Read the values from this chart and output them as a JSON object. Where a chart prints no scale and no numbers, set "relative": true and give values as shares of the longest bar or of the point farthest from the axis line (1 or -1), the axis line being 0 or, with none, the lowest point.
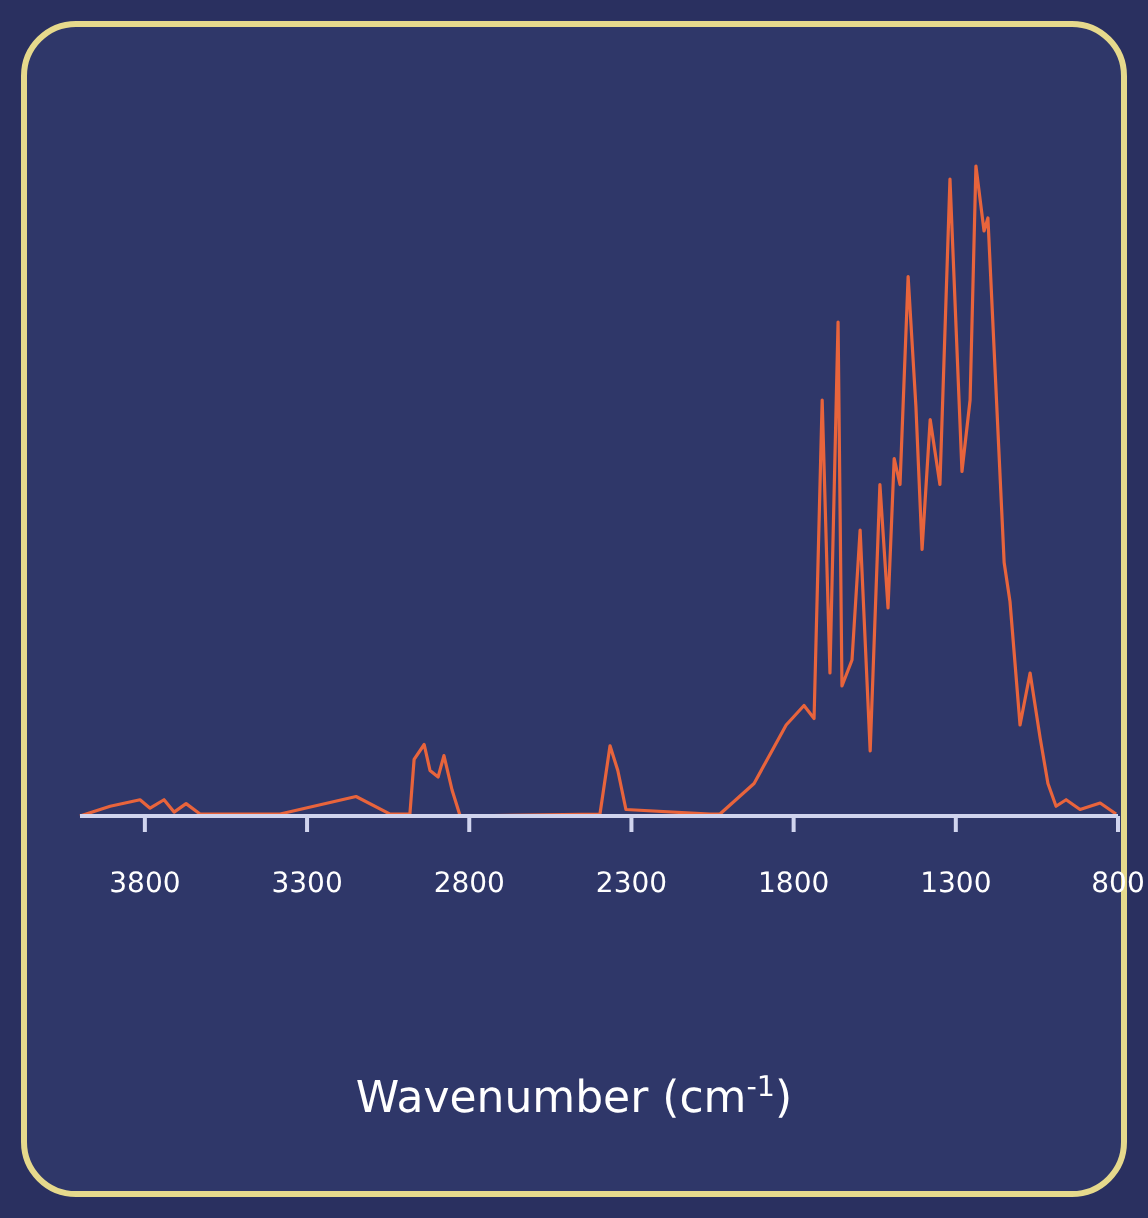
{
  "chart_data": {
    "type": "line",
    "xlabel": "Wavenumber (cm$^{-1}$)",
    "relative": true,
    "xlim": [
      4000,
      800
    ],
    "xticks": [
      3800,
      3300,
      2800,
      2300,
      1800,
      1300,
      800
    ],
    "grid": false,
    "line_style": "solid",
    "x": [
      4000,
      3907,
      3815,
      3784,
      3741,
      3710,
      3673,
      3630,
      3383,
      3149,
      3044,
      2983,
      2970,
      2939,
      2921,
      2896,
      2878,
      2853,
      2828,
      2397,
      2366,
      2342,
      2317,
      2058,
      2027,
      1922,
      1823,
      1768,
      1737,
      1712,
      1688,
      1663,
      1651,
      1620,
      1595,
      1564,
      1534,
      1509,
      1490,
      1472,
      1447,
      1423,
      1404,
      1379,
      1349,
      1318,
      1281,
      1256,
      1238,
      1213,
      1201,
      1151,
      1133,
      1102,
      1071,
      1040,
      1016,
      991,
      960,
      917,
      855,
      806
    ],
    "series": [
      {
        "color": "#e8643c",
        "values": [
          0,
          0.015,
          0.025,
          0.012,
          0.025,
          0.006,
          0.019,
          0.003,
          0.003,
          0.03,
          0.003,
          0.003,
          0.087,
          0.11,
          0.07,
          0.06,
          0.093,
          0.04,
          0,
          0.003,
          0.108,
          0.07,
          0.01,
          0.003,
          0.003,
          0.05,
          0.14,
          0.17,
          0.15,
          0.64,
          0.22,
          0.76,
          0.2,
          0.24,
          0.44,
          0.1,
          0.51,
          0.32,
          0.55,
          0.51,
          0.83,
          0.63,
          0.41,
          0.61,
          0.51,
          0.98,
          0.53,
          0.64,
          1,
          0.9,
          0.92,
          0.39,
          0.33,
          0.14,
          0.22,
          0.12,
          0.05,
          0.015,
          0.025,
          0.01,
          0.02,
          0.003
        ]
      }
    ]
  }
}
